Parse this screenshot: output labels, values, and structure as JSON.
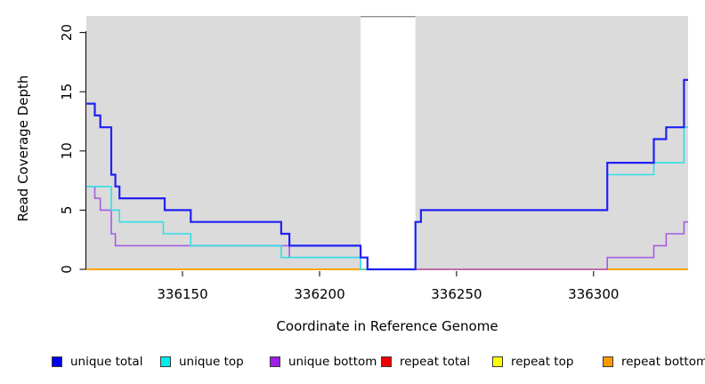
{
  "chart_data": {
    "type": "line",
    "subtype": "step-after",
    "title": "",
    "xlabel": "Coordinate in Reference Genome",
    "ylabel": "Read Coverage Depth",
    "xlim": [
      336114.9,
      336334.5
    ],
    "ylim": [
      0,
      21.4
    ],
    "xticks": [
      336150,
      336200,
      336250,
      336300
    ],
    "yticks": [
      0,
      5,
      10,
      15,
      20
    ],
    "grid": false,
    "plot_bg": "#dbdbdb",
    "gap_region": {
      "x_start": 336215,
      "x_end": 336235,
      "color": "#ffffff"
    },
    "legend_position": "bottom",
    "series": [
      {
        "key": "repeat_total",
        "name": "repeat total",
        "color": "#dd0000",
        "width": 1.6,
        "points": [
          [
            336115,
            0
          ]
        ]
      },
      {
        "key": "repeat_top",
        "name": "repeat top",
        "color": "#ffff00",
        "width": 1.6,
        "points": [
          [
            336115,
            0
          ]
        ]
      },
      {
        "key": "repeat_bottom",
        "name": "repeat bottom",
        "color": "#ffa500",
        "width": 2,
        "points": [
          [
            336115,
            0
          ]
        ]
      },
      {
        "key": "unique_bottom",
        "name": "unique bottom",
        "color": "#a55ce0",
        "width": 1.6,
        "points": [
          [
            336115,
            7
          ],
          [
            336118,
            6
          ],
          [
            336120,
            5
          ],
          [
            336124,
            3
          ],
          [
            336125.5,
            2
          ],
          [
            336189,
            1
          ],
          [
            336217.5,
            0
          ],
          [
            336305,
            1
          ],
          [
            336322,
            2
          ],
          [
            336326.5,
            3
          ],
          [
            336333,
            4
          ]
        ]
      },
      {
        "key": "unique_top",
        "name": "unique top",
        "color": "#2fe0e8",
        "width": 1.6,
        "points": [
          [
            336115,
            7
          ],
          [
            336124,
            5
          ],
          [
            336127,
            4
          ],
          [
            336143,
            3
          ],
          [
            336153,
            2
          ],
          [
            336186,
            1
          ],
          [
            336215,
            0
          ],
          [
            336235,
            4
          ],
          [
            336237,
            5
          ],
          [
            336305,
            8
          ],
          [
            336322,
            9
          ],
          [
            336333,
            12
          ]
        ]
      },
      {
        "key": "unique_total",
        "name": "unique total",
        "color": "#2121f3",
        "width": 2.2,
        "points": [
          [
            336115,
            14
          ],
          [
            336118,
            13
          ],
          [
            336120,
            12
          ],
          [
            336124,
            8
          ],
          [
            336125.5,
            7
          ],
          [
            336127,
            6
          ],
          [
            336143.5,
            5
          ],
          [
            336153,
            4
          ],
          [
            336186,
            3
          ],
          [
            336189,
            2
          ],
          [
            336215,
            1
          ],
          [
            336217.5,
            0
          ],
          [
            336235,
            4
          ],
          [
            336237,
            5
          ],
          [
            336305,
            9
          ],
          [
            336322,
            11
          ],
          [
            336326.5,
            12
          ],
          [
            336333,
            16
          ]
        ]
      }
    ]
  },
  "legend": {
    "items": [
      {
        "label": "unique total",
        "color": "#0000ee"
      },
      {
        "label": "unique top",
        "color": "#00eeee"
      },
      {
        "label": "unique bottom",
        "color": "#9c1fe8"
      },
      {
        "label": "repeat total",
        "color": "#ee0000"
      },
      {
        "label": "repeat top",
        "color": "#ffff00"
      },
      {
        "label": "repeat bottom",
        "color": "#ff9900"
      }
    ]
  }
}
